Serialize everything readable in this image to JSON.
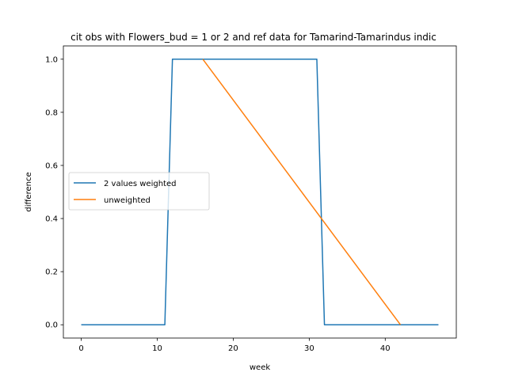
{
  "chart_data": {
    "type": "line",
    "title": "cit obs with Flowers_bud = 1 or 2 and ref data for Tamarind-Tamarindus indic",
    "xlabel": "week",
    "ylabel": "difference",
    "xlim": [
      -2.35,
      49.35
    ],
    "ylim": [
      -0.05,
      1.05
    ],
    "xticks": [
      0,
      10,
      20,
      30,
      40
    ],
    "yticks": [
      0.0,
      0.2,
      0.4,
      0.6,
      0.8,
      1.0
    ],
    "xtick_labels": [
      "0",
      "10",
      "20",
      "30",
      "40"
    ],
    "ytick_labels": [
      "0.0",
      "0.2",
      "0.4",
      "0.6",
      "0.8",
      "1.0"
    ],
    "grid": false,
    "legend_position": "center-left",
    "series": [
      {
        "name": "2 values weighted",
        "color": "#1f77b4",
        "x": [
          0,
          11,
          12,
          31,
          32,
          47
        ],
        "y": [
          0,
          0,
          1,
          1,
          0,
          0
        ]
      },
      {
        "name": "unweighted",
        "color": "#ff7f0e",
        "x": [
          16,
          42
        ],
        "y": [
          1,
          0
        ]
      }
    ]
  }
}
